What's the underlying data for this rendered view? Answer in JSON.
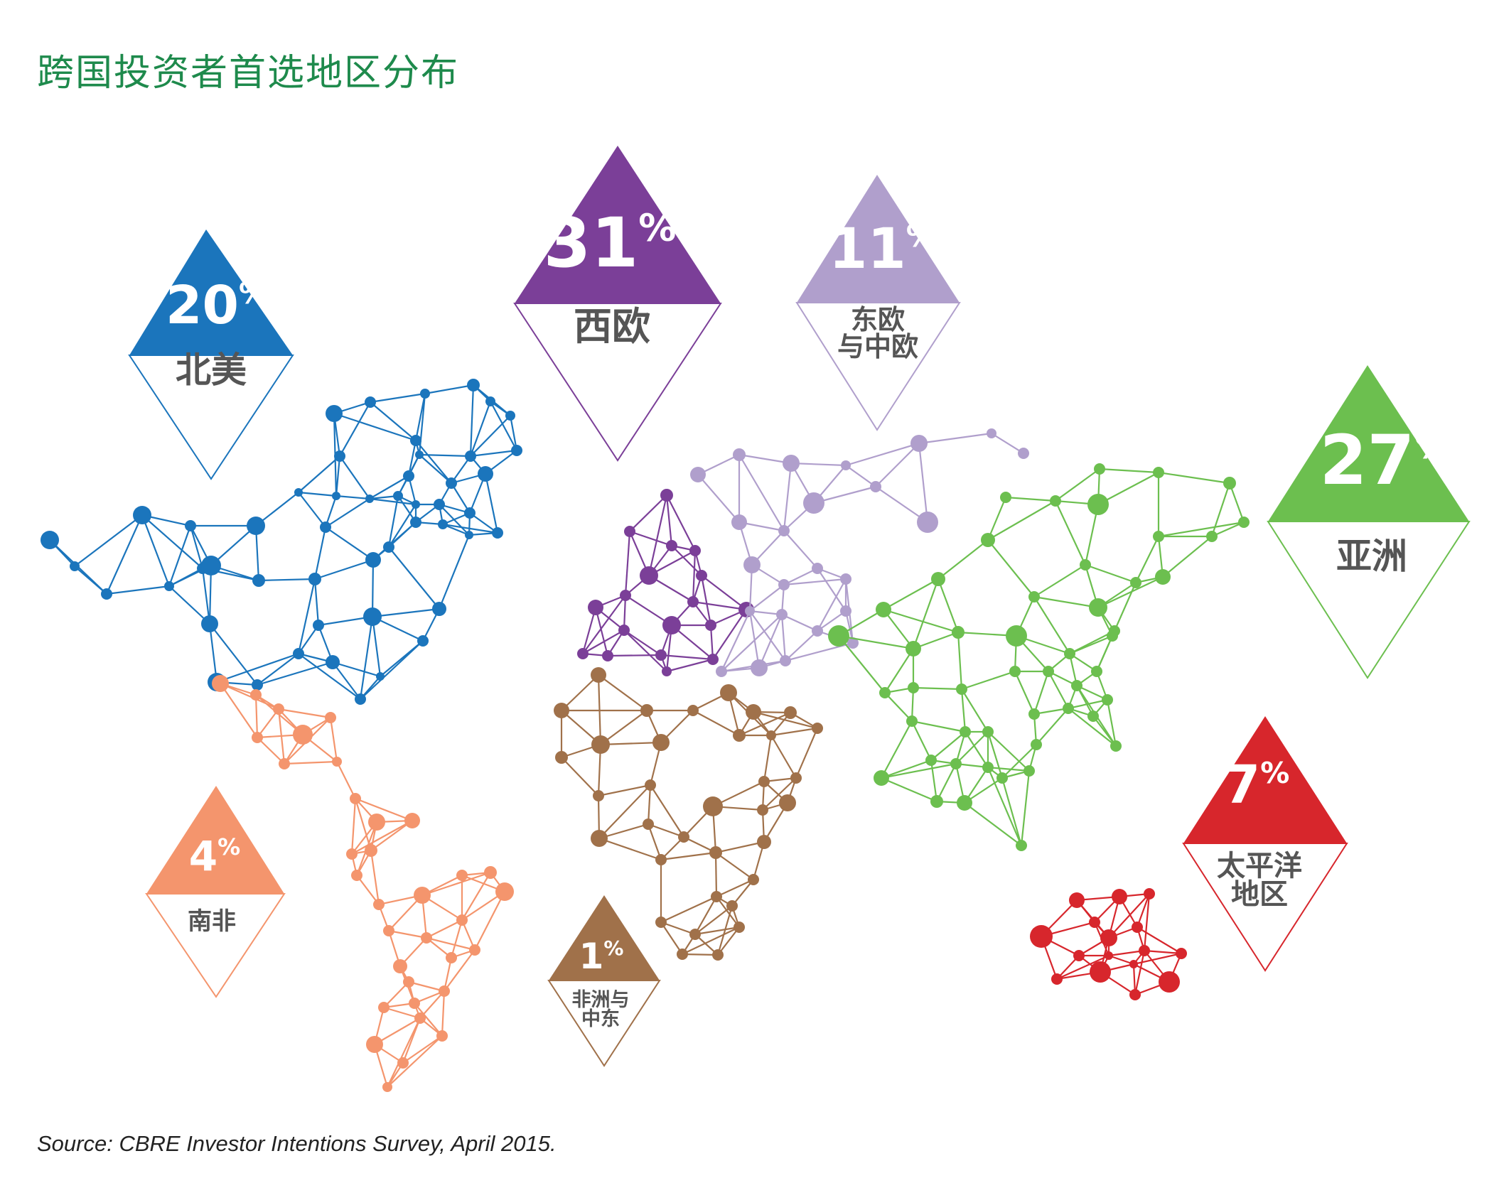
{
  "title": "跨国投资者首选地区分布",
  "source": "Source: CBRE Investor Intentions Survey, April 2015.",
  "chart_data": {
    "type": "pictogram",
    "unit": "%",
    "series": [
      {
        "region": "北美",
        "region_lines": [
          "北美"
        ],
        "value": 20,
        "color": "#1b75bc"
      },
      {
        "region": "西欧",
        "region_lines": [
          "西欧"
        ],
        "value": 31,
        "color": "#7b3f98"
      },
      {
        "region": "东欧与中欧",
        "region_lines": [
          "东欧",
          "与中欧"
        ],
        "value": 11,
        "color": "#b09fcc"
      },
      {
        "region": "亚洲",
        "region_lines": [
          "亚洲"
        ],
        "value": 27,
        "color": "#6cbf4f"
      },
      {
        "region": "太平洋地区",
        "region_lines": [
          "太平洋",
          "地区"
        ],
        "value": 7,
        "color": "#d7262c"
      },
      {
        "region": "南非",
        "region_lines": [
          "南非"
        ],
        "value": 4,
        "color": "#f4956d"
      },
      {
        "region": "非洲与中东",
        "region_lines": [
          "非洲与",
          "中东"
        ],
        "value": 1,
        "color": "#a0714a"
      }
    ]
  }
}
